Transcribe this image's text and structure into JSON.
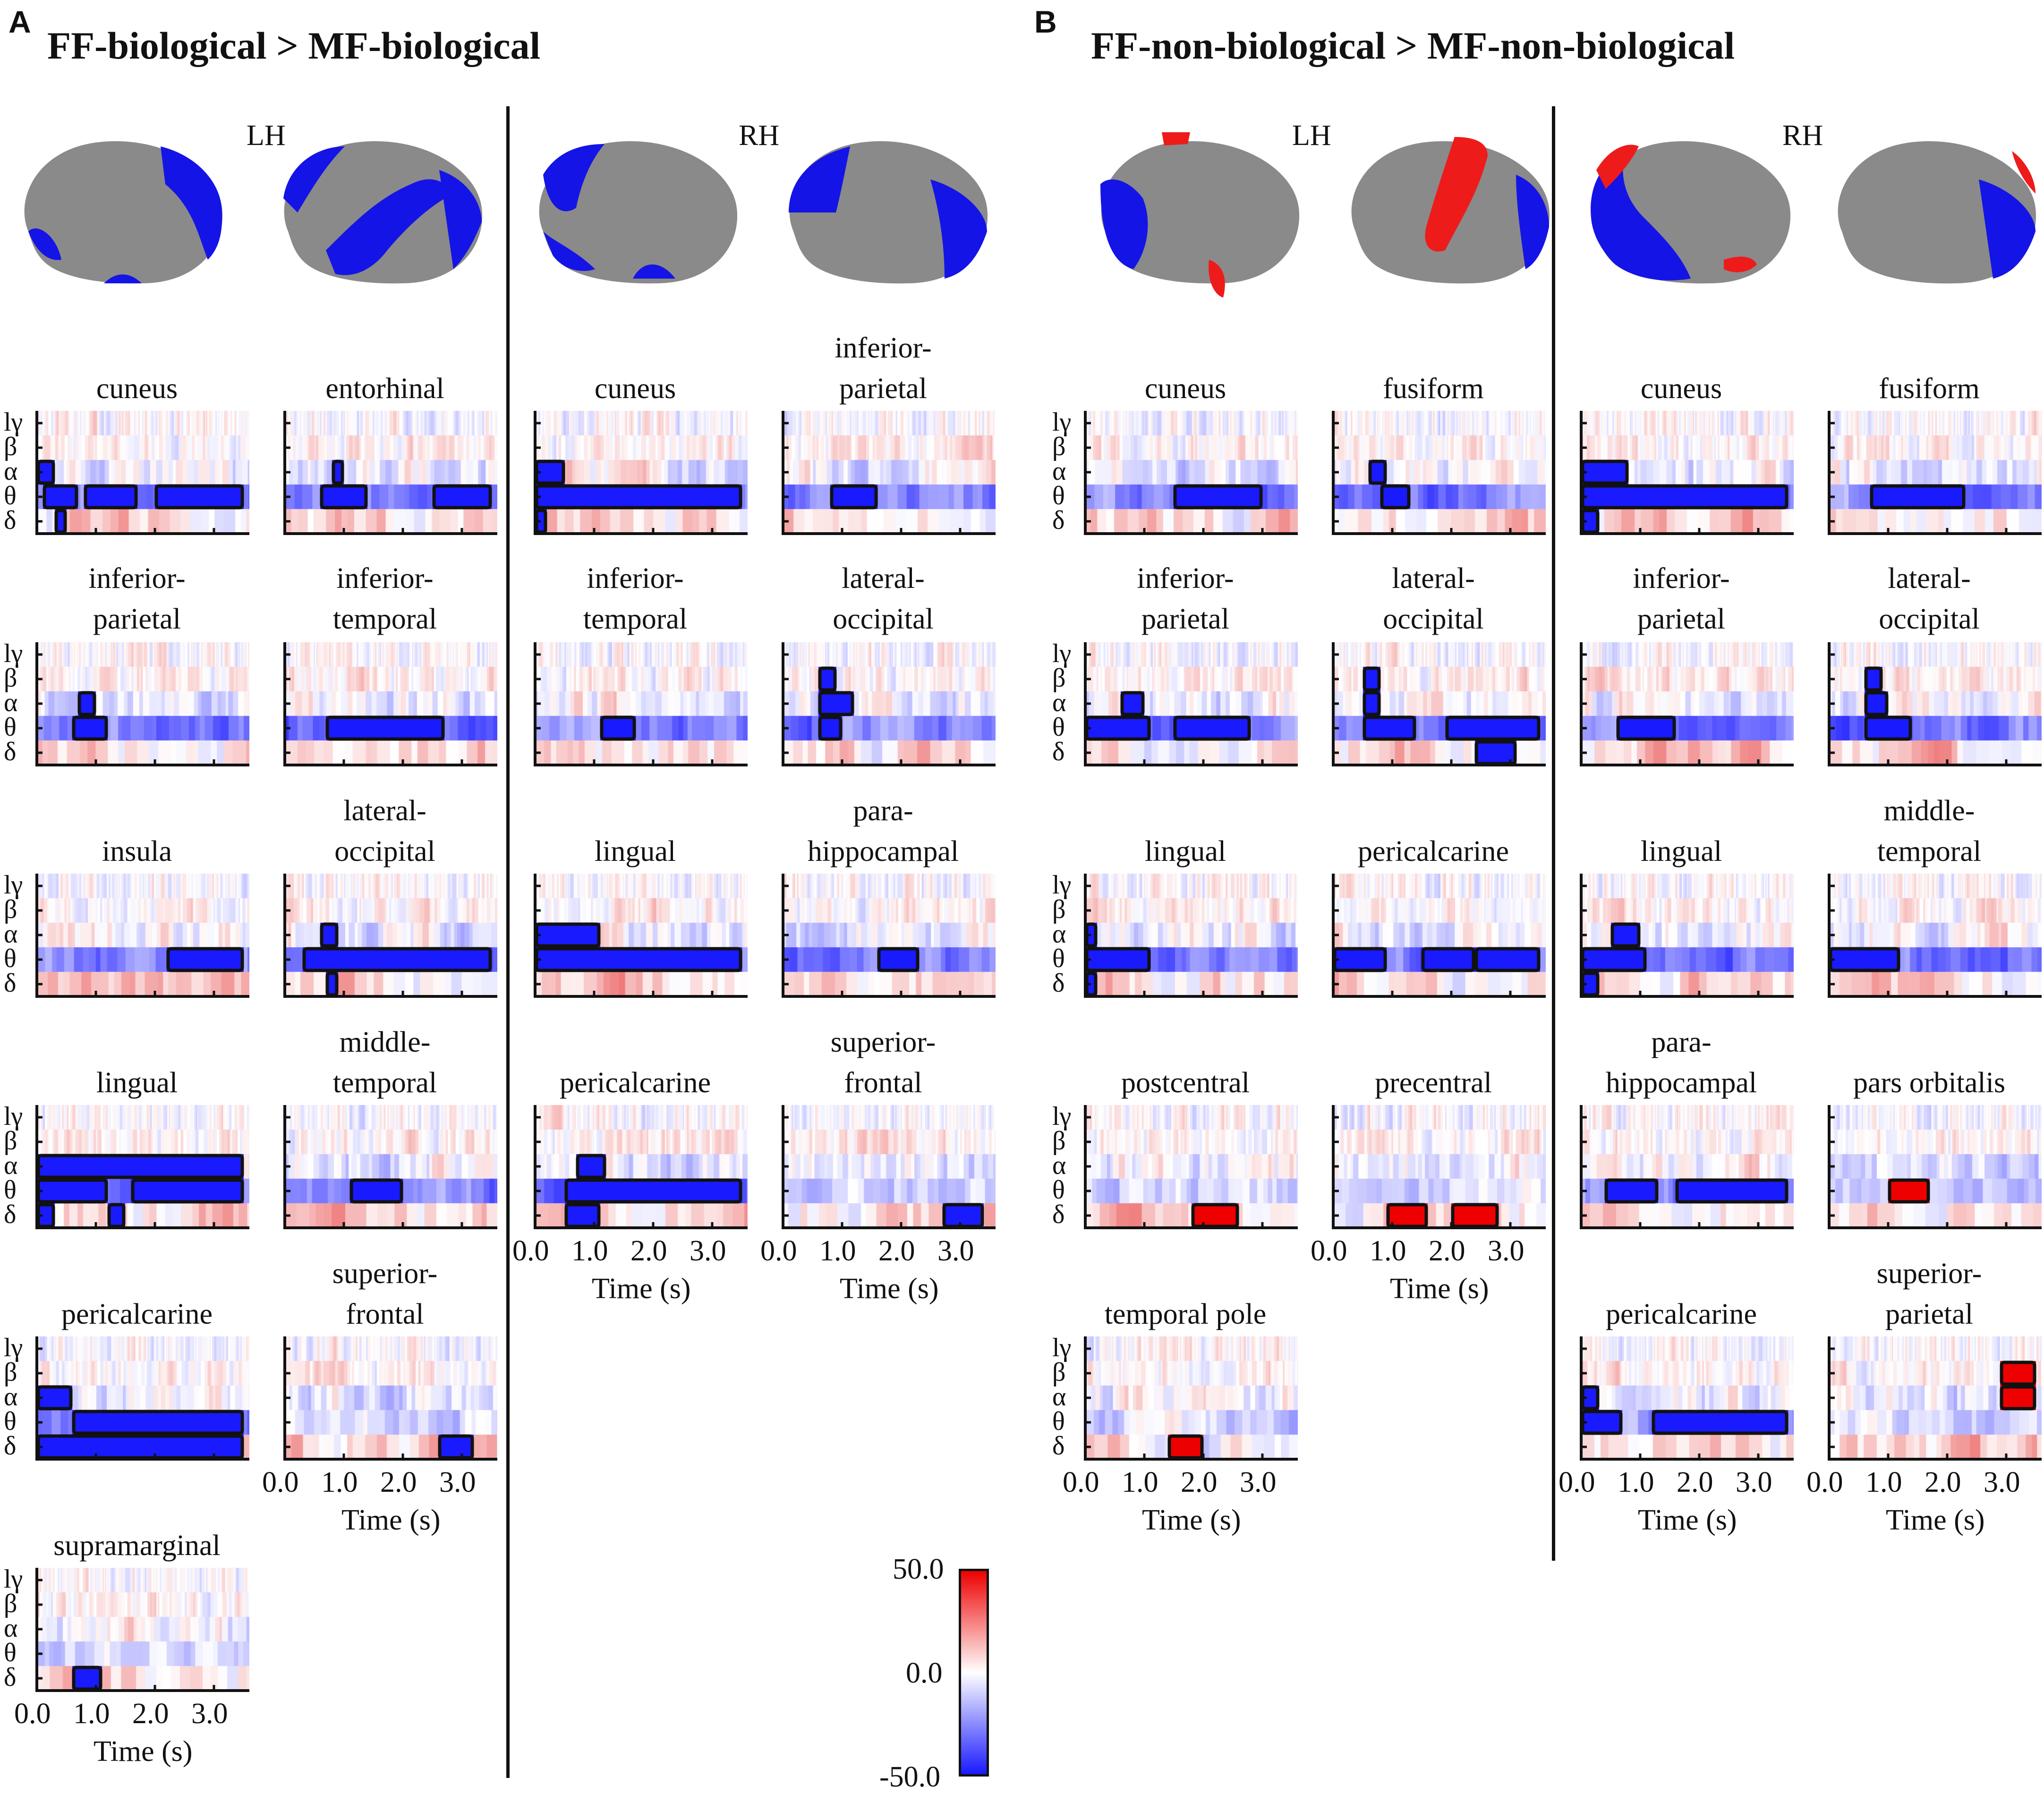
{
  "panel_labels": {
    "a": "A",
    "b": "B"
  },
  "titles": {
    "a": "FF-biological > MF-biological",
    "b": "FF-non-biological > MF-non-biological"
  },
  "hemispheres": {
    "a_left": "LH",
    "a_right": "RH",
    "b_left": "LH",
    "b_right": "RH"
  },
  "brain_cluster_colors": {
    "negative": "#1414e6",
    "positive": "#ee1b1b",
    "cortex": "#8a8a8a"
  },
  "freq_bands": [
    "lγ",
    "β",
    "α",
    "θ",
    "δ"
  ],
  "time_axis": {
    "ticks": [
      "0.0",
      "1.0",
      "2.0",
      "3.0"
    ],
    "label": "Time (s)",
    "range_s": [
      0,
      3.6
    ]
  },
  "colorbar": {
    "max": "50.0",
    "mid": "0.0",
    "min": "-50.0",
    "colors": [
      "#1a1aff",
      "#ffffff",
      "#ee0000"
    ]
  },
  "chart_data": [
    {
      "type": "heatmap",
      "id": "a-lh-cuneus",
      "title": "cuneus",
      "significant": [
        [
          "θ",
          0.1,
          0.7,
          "neg"
        ],
        [
          "θ",
          0.8,
          1.7,
          "neg"
        ],
        [
          "θ",
          2.0,
          3.5,
          "neg"
        ],
        [
          "α",
          0.0,
          0.3,
          "neg"
        ],
        [
          "δ",
          0.3,
          0.5,
          "neg"
        ]
      ]
    },
    {
      "type": "heatmap",
      "id": "a-lh-entorhinal",
      "title": "entorhinal",
      "significant": [
        [
          "θ",
          0.6,
          1.4,
          "neg"
        ],
        [
          "θ",
          2.5,
          3.5,
          "neg"
        ],
        [
          "α",
          0.8,
          1.0,
          "neg"
        ]
      ]
    },
    {
      "type": "heatmap",
      "id": "a-lh-inferior-parietal",
      "title": "inferior-\nparietal",
      "significant": [
        [
          "θ",
          0.6,
          1.2,
          "neg"
        ],
        [
          "α",
          0.7,
          1.0,
          "neg"
        ]
      ]
    },
    {
      "type": "heatmap",
      "id": "a-lh-inferior-temporal",
      "title": "inferior-\ntemporal",
      "significant": [
        [
          "θ",
          0.7,
          2.7,
          "neg"
        ]
      ]
    },
    {
      "type": "heatmap",
      "id": "a-lh-insula",
      "title": "insula",
      "significant": [
        [
          "θ",
          2.2,
          3.5,
          "neg"
        ]
      ]
    },
    {
      "type": "heatmap",
      "id": "a-lh-lateral-occipital",
      "title": "lateral-\noccipital",
      "significant": [
        [
          "θ",
          0.3,
          3.5,
          "neg"
        ],
        [
          "α",
          0.6,
          0.9,
          "neg"
        ],
        [
          "δ",
          0.7,
          0.9,
          "neg"
        ]
      ]
    },
    {
      "type": "heatmap",
      "id": "a-lh-lingual",
      "title": "lingual",
      "significant": [
        [
          "θ",
          0.0,
          1.2,
          "neg"
        ],
        [
          "θ",
          1.6,
          3.5,
          "neg"
        ],
        [
          "α",
          0.0,
          3.5,
          "neg"
        ],
        [
          "δ",
          0.0,
          0.3,
          "neg"
        ],
        [
          "δ",
          1.2,
          1.5,
          "neg"
        ]
      ]
    },
    {
      "type": "heatmap",
      "id": "a-lh-middle-temporal",
      "title": "middle-\ntemporal",
      "significant": [
        [
          "θ",
          1.1,
          2.0,
          "neg"
        ]
      ]
    },
    {
      "type": "heatmap",
      "id": "a-lh-pericalcarine",
      "title": "pericalcarine",
      "significant": [
        [
          "θ",
          0.6,
          3.5,
          "neg"
        ],
        [
          "α",
          0.0,
          0.6,
          "neg"
        ],
        [
          "δ",
          0.0,
          3.5,
          "neg"
        ]
      ]
    },
    {
      "type": "heatmap",
      "id": "a-lh-superior-frontal",
      "title": "superior-\nfrontal",
      "significant": [
        [
          "δ",
          2.6,
          3.2,
          "neg"
        ]
      ]
    },
    {
      "type": "heatmap",
      "id": "a-lh-supramarginal",
      "title": "supramarginal",
      "significant": [
        [
          "δ",
          0.6,
          1.1,
          "neg"
        ]
      ]
    },
    {
      "type": "heatmap",
      "id": "a-rh-cuneus",
      "title": "cuneus",
      "significant": [
        [
          "θ",
          0.0,
          3.5,
          "neg"
        ],
        [
          "α",
          0.0,
          0.5,
          "neg"
        ],
        [
          "δ",
          0.0,
          0.2,
          "neg"
        ]
      ]
    },
    {
      "type": "heatmap",
      "id": "a-rh-inferior-parietal",
      "title": "inferior-\nparietal",
      "significant": [
        [
          "θ",
          0.8,
          1.6,
          "neg"
        ]
      ]
    },
    {
      "type": "heatmap",
      "id": "a-rh-inferior-temporal",
      "title": "inferior-\ntemporal",
      "significant": [
        [
          "θ",
          1.1,
          1.7,
          "neg"
        ]
      ]
    },
    {
      "type": "heatmap",
      "id": "a-rh-lateral-occipital",
      "title": "lateral-\noccipital",
      "significant": [
        [
          "θ",
          0.6,
          1.0,
          "neg"
        ],
        [
          "α",
          0.6,
          1.2,
          "neg"
        ],
        [
          "β",
          0.6,
          0.9,
          "neg"
        ]
      ]
    },
    {
      "type": "heatmap",
      "id": "a-rh-lingual",
      "title": "lingual",
      "significant": [
        [
          "θ",
          0.0,
          3.5,
          "neg"
        ],
        [
          "α",
          0.0,
          1.1,
          "neg"
        ]
      ]
    },
    {
      "type": "heatmap",
      "id": "a-rh-parahippocampal",
      "title": "para-\nhippocampal",
      "significant": [
        [
          "θ",
          1.6,
          2.3,
          "neg"
        ]
      ]
    },
    {
      "type": "heatmap",
      "id": "a-rh-pericalcarine",
      "title": "pericalcarine",
      "significant": [
        [
          "θ",
          0.5,
          3.5,
          "neg"
        ],
        [
          "α",
          0.7,
          1.2,
          "neg"
        ],
        [
          "δ",
          0.5,
          1.1,
          "neg"
        ]
      ]
    },
    {
      "type": "heatmap",
      "id": "a-rh-superior-frontal",
      "title": "superior-\nfrontal",
      "significant": [
        [
          "δ",
          2.7,
          3.4,
          "neg"
        ]
      ]
    },
    {
      "type": "heatmap",
      "id": "b-lh-cuneus",
      "title": "cuneus",
      "significant": [
        [
          "θ",
          1.5,
          3.0,
          "neg"
        ]
      ]
    },
    {
      "type": "heatmap",
      "id": "b-lh-fusiform",
      "title": "fusiform",
      "significant": [
        [
          "θ",
          0.8,
          1.3,
          "neg"
        ],
        [
          "α",
          0.6,
          0.9,
          "neg"
        ]
      ]
    },
    {
      "type": "heatmap",
      "id": "b-lh-inferior-parietal",
      "title": "inferior-\nparietal",
      "significant": [
        [
          "θ",
          0.0,
          1.1,
          "neg"
        ],
        [
          "θ",
          1.5,
          2.8,
          "neg"
        ],
        [
          "α",
          0.6,
          1.0,
          "neg"
        ]
      ]
    },
    {
      "type": "heatmap",
      "id": "b-lh-lateral-occipital",
      "title": "lateral-\noccipital",
      "significant": [
        [
          "θ",
          0.5,
          1.4,
          "neg"
        ],
        [
          "θ",
          1.9,
          3.5,
          "neg"
        ],
        [
          "α",
          0.5,
          0.8,
          "neg"
        ],
        [
          "β",
          0.5,
          0.8,
          "neg"
        ],
        [
          "δ",
          2.4,
          3.1,
          "neg"
        ]
      ]
    },
    {
      "type": "heatmap",
      "id": "b-lh-lingual",
      "title": "lingual",
      "significant": [
        [
          "θ",
          0.0,
          1.1,
          "neg"
        ],
        [
          "α",
          0.0,
          0.2,
          "neg"
        ],
        [
          "δ",
          0.0,
          0.2,
          "neg"
        ]
      ]
    },
    {
      "type": "heatmap",
      "id": "b-lh-pericalcarine",
      "title": "pericalcarine",
      "significant": [
        [
          "θ",
          0.0,
          0.9,
          "neg"
        ],
        [
          "θ",
          1.5,
          2.4,
          "neg"
        ],
        [
          "θ",
          2.4,
          3.5,
          "neg"
        ]
      ]
    },
    {
      "type": "heatmap",
      "id": "b-lh-postcentral",
      "title": "postcentral",
      "significant": [
        [
          "δ",
          1.8,
          2.6,
          "pos"
        ]
      ]
    },
    {
      "type": "heatmap",
      "id": "b-lh-precentral",
      "title": "precentral",
      "significant": [
        [
          "δ",
          0.9,
          1.6,
          "pos"
        ],
        [
          "δ",
          2.0,
          2.8,
          "pos"
        ]
      ]
    },
    {
      "type": "heatmap",
      "id": "b-lh-temporal-pole",
      "title": "temporal pole",
      "significant": [
        [
          "δ",
          1.4,
          2.0,
          "pos"
        ]
      ]
    },
    {
      "type": "heatmap",
      "id": "b-rh-cuneus",
      "title": "cuneus",
      "significant": [
        [
          "θ",
          0.0,
          3.5,
          "neg"
        ],
        [
          "α",
          0.0,
          0.8,
          "neg"
        ],
        [
          "δ",
          0.0,
          0.3,
          "neg"
        ]
      ]
    },
    {
      "type": "heatmap",
      "id": "b-rh-fusiform",
      "title": "fusiform",
      "significant": [
        [
          "θ",
          0.7,
          2.3,
          "neg"
        ]
      ]
    },
    {
      "type": "heatmap",
      "id": "b-rh-inferior-parietal",
      "title": "inferior-\nparietal",
      "significant": [
        [
          "θ",
          0.6,
          1.6,
          "neg"
        ]
      ]
    },
    {
      "type": "heatmap",
      "id": "b-rh-lateral-occipital",
      "title": "lateral-\noccipital",
      "significant": [
        [
          "θ",
          0.6,
          1.4,
          "neg"
        ],
        [
          "α",
          0.6,
          1.0,
          "neg"
        ],
        [
          "β",
          0.6,
          0.9,
          "neg"
        ]
      ]
    },
    {
      "type": "heatmap",
      "id": "b-rh-lingual",
      "title": "lingual",
      "significant": [
        [
          "θ",
          0.0,
          1.1,
          "neg"
        ],
        [
          "α",
          0.5,
          1.0,
          "neg"
        ],
        [
          "δ",
          0.0,
          0.3,
          "neg"
        ]
      ]
    },
    {
      "type": "heatmap",
      "id": "b-rh-middle-temporal",
      "title": "middle-\ntemporal",
      "significant": [
        [
          "θ",
          0.0,
          1.2,
          "neg"
        ]
      ]
    },
    {
      "type": "heatmap",
      "id": "b-rh-parahippocampal",
      "title": "para-\nhippocampal",
      "significant": [
        [
          "θ",
          0.4,
          1.3,
          "neg"
        ],
        [
          "θ",
          1.6,
          3.5,
          "neg"
        ]
      ]
    },
    {
      "type": "heatmap",
      "id": "b-rh-pars-orbitalis",
      "title": "pars orbitalis",
      "significant": [
        [
          "θ",
          1.0,
          1.7,
          "pos"
        ]
      ]
    },
    {
      "type": "heatmap",
      "id": "b-rh-pericalcarine",
      "title": "pericalcarine",
      "significant": [
        [
          "θ",
          0.0,
          0.7,
          "neg"
        ],
        [
          "θ",
          1.2,
          3.5,
          "neg"
        ],
        [
          "α",
          0.0,
          0.3,
          "neg"
        ]
      ]
    },
    {
      "type": "heatmap",
      "id": "b-rh-superior-parietal",
      "title": "superior-\nparietal",
      "significant": [
        [
          "α",
          2.9,
          3.5,
          "pos"
        ],
        [
          "β",
          2.9,
          3.5,
          "pos"
        ]
      ]
    }
  ]
}
